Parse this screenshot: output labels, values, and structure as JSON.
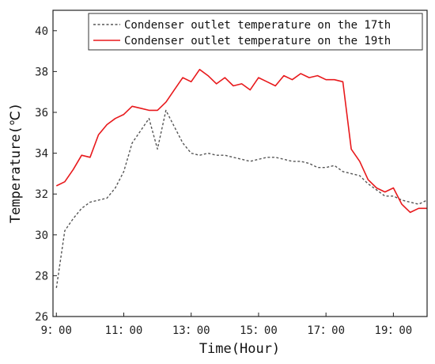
{
  "chart_data": {
    "type": "line",
    "title": "",
    "xlabel": "Time(Hour)",
    "ylabel": "Temperature(℃)",
    "xlim": [
      8.9,
      20.0
    ],
    "ylim": [
      26,
      41
    ],
    "x_ticks": [
      9,
      11,
      13,
      15,
      17,
      19
    ],
    "x_tick_labels": [
      "9：00",
      "11：00",
      "13：00",
      "15：00",
      "17：00",
      "19：00"
    ],
    "y_ticks": [
      26,
      28,
      30,
      32,
      34,
      36,
      38,
      40
    ],
    "y_tick_labels": [
      "26",
      "28",
      "30",
      "32",
      "34",
      "36",
      "38",
      "40"
    ],
    "grid": false,
    "legend_position": "top-right",
    "series": [
      {
        "name": "Condenser outlet temperature on the 17th",
        "color": "#555555",
        "dash": "dashed",
        "x": [
          9.0,
          9.25,
          9.5,
          9.75,
          10.0,
          10.25,
          10.5,
          10.75,
          11.0,
          11.25,
          11.5,
          11.75,
          12.0,
          12.25,
          12.5,
          12.75,
          13.0,
          13.25,
          13.5,
          13.75,
          14.0,
          14.25,
          14.5,
          14.75,
          15.0,
          15.25,
          15.5,
          15.75,
          16.0,
          16.25,
          16.5,
          16.75,
          17.0,
          17.25,
          17.5,
          17.75,
          18.0,
          18.25,
          18.5,
          18.75,
          19.0,
          19.25,
          19.5,
          19.75,
          20.0
        ],
        "values": [
          27.4,
          30.2,
          30.8,
          31.3,
          31.6,
          31.7,
          31.8,
          32.3,
          33.1,
          34.5,
          35.1,
          35.7,
          34.2,
          36.1,
          35.3,
          34.5,
          34.0,
          33.9,
          34.0,
          33.9,
          33.9,
          33.8,
          33.7,
          33.6,
          33.7,
          33.8,
          33.8,
          33.7,
          33.6,
          33.6,
          33.5,
          33.3,
          33.3,
          33.4,
          33.1,
          33.0,
          32.9,
          32.5,
          32.2,
          31.9,
          31.9,
          31.7,
          31.6,
          31.5,
          31.7
        ]
      },
      {
        "name": "Condenser outlet temperature on the 19th",
        "color": "#e8191c",
        "dash": "solid",
        "x": [
          9.0,
          9.25,
          9.5,
          9.75,
          10.0,
          10.25,
          10.5,
          10.75,
          11.0,
          11.25,
          11.5,
          11.75,
          12.0,
          12.25,
          12.5,
          12.75,
          13.0,
          13.25,
          13.5,
          13.75,
          14.0,
          14.25,
          14.5,
          14.75,
          15.0,
          15.25,
          15.5,
          15.75,
          16.0,
          16.25,
          16.5,
          16.75,
          17.0,
          17.25,
          17.5,
          17.75,
          18.0,
          18.25,
          18.5,
          18.75,
          19.0,
          19.25,
          19.5,
          19.75,
          20.0
        ],
        "values": [
          32.4,
          32.6,
          33.2,
          33.9,
          33.8,
          34.9,
          35.4,
          35.7,
          35.9,
          36.3,
          36.2,
          36.1,
          36.1,
          36.5,
          37.1,
          37.7,
          37.5,
          38.1,
          37.8,
          37.4,
          37.7,
          37.3,
          37.4,
          37.1,
          37.7,
          37.5,
          37.3,
          37.8,
          37.6,
          37.9,
          37.7,
          37.8,
          37.6,
          37.6,
          37.5,
          34.2,
          33.6,
          32.7,
          32.3,
          32.1,
          32.3,
          31.5,
          31.1,
          31.3,
          31.3
        ]
      }
    ]
  }
}
